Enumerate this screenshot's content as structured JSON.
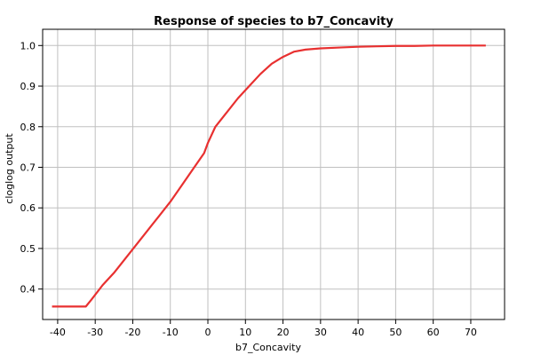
{
  "chart_data": {
    "type": "line",
    "title": "Response of species to b7_Concavity",
    "xlabel": "b7_Concavity",
    "ylabel": "cloglog output",
    "xlim": [
      -44,
      79
    ],
    "ylim": [
      0.325,
      1.04
    ],
    "x_ticks": [
      -40,
      -30,
      -20,
      -10,
      0,
      10,
      20,
      30,
      40,
      50,
      60,
      70
    ],
    "y_ticks": [
      0.4,
      0.5,
      0.6,
      0.7,
      0.8,
      0.9,
      1.0
    ],
    "x_tick_labels": [
      "-40",
      "-30",
      "-20",
      "-10",
      "0",
      "10",
      "20",
      "30",
      "40",
      "50",
      "60",
      "70"
    ],
    "y_tick_labels": [
      "0.4",
      "0.5",
      "0.6",
      "0.7",
      "0.8",
      "0.9",
      "1.0"
    ],
    "grid": true,
    "series": [
      {
        "color": "#e83030",
        "x": [
          -41.5,
          -32.5,
          -31,
          -28,
          -25,
          -22,
          -19,
          -16,
          -13,
          -10,
          -7,
          -4,
          -1,
          0,
          2,
          5,
          8,
          11,
          14,
          17,
          20,
          23,
          26,
          30,
          35,
          40,
          45,
          50,
          55,
          60,
          65,
          70,
          74
        ],
        "y": [
          0.357,
          0.357,
          0.374,
          0.41,
          0.44,
          0.475,
          0.51,
          0.545,
          0.58,
          0.615,
          0.655,
          0.695,
          0.735,
          0.76,
          0.8,
          0.835,
          0.87,
          0.9,
          0.93,
          0.955,
          0.972,
          0.985,
          0.99,
          0.993,
          0.995,
          0.997,
          0.998,
          0.999,
          0.999,
          1.0,
          1.0,
          1.0,
          1.0
        ]
      }
    ]
  }
}
